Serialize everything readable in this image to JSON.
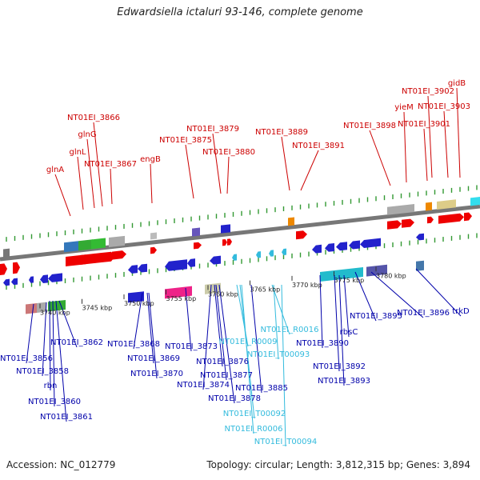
{
  "title": "Edwardsiella ictaluri 93-146, complete genome",
  "accession": "Accession: NC_012779",
  "summary": "Topology: circular; Length: 3,812,315 bp; Genes: 3,894",
  "colors": {
    "forward_label": "#cc0000",
    "reverse_label": "#0000aa",
    "rna_label": "#33bbdd",
    "backbone": "#777777"
  },
  "axis_ticks": [
    "3740 kbp",
    "3745 kbp",
    "3750 kbp",
    "3755 kbp",
    "3760 kbp",
    "3765 kbp",
    "3770 kbp",
    "3775 kbp",
    "3780 kbp"
  ],
  "forward_labels": [
    "glnA",
    "glnL",
    "glnG",
    "NT01EI_3866",
    "NT01EI_3867",
    "engB",
    "NT01EI_3875",
    "NT01EI_3879",
    "NT01EI_3880",
    "NT01EI_3889",
    "NT01EI_3891",
    "NT01EI_3898",
    "yieM",
    "NT01EI_3901",
    "NT01EI_3902",
    "NT01EI_3903",
    "gidB"
  ],
  "reverse_labels": [
    "NT01EI_3856",
    "NT01EI_3858",
    "rbn",
    "NT01EI_3860",
    "NT01EI_3861",
    "NT01EI_3862",
    "NT01EI_3868",
    "NT01EI_3869",
    "NT01EI_3870",
    "NT01EI_3873",
    "NT01EI_3874",
    "NT01EI_3876",
    "NT01EI_3877",
    "NT01EI_3878",
    "NT01EI_3885",
    "NT01EI_3890",
    "NT01EI_3892",
    "NT01EI_3893",
    "rbsC",
    "NT01EI_3895",
    "NT01EI_3896",
    "trkD"
  ],
  "rna_labels": [
    "NT01EI_R0016",
    "NT01EI_R0009",
    "NT01EI_T00093",
    "NT01EI_T00092",
    "NT01EI_R0006",
    "NT01EI_T00094"
  ]
}
